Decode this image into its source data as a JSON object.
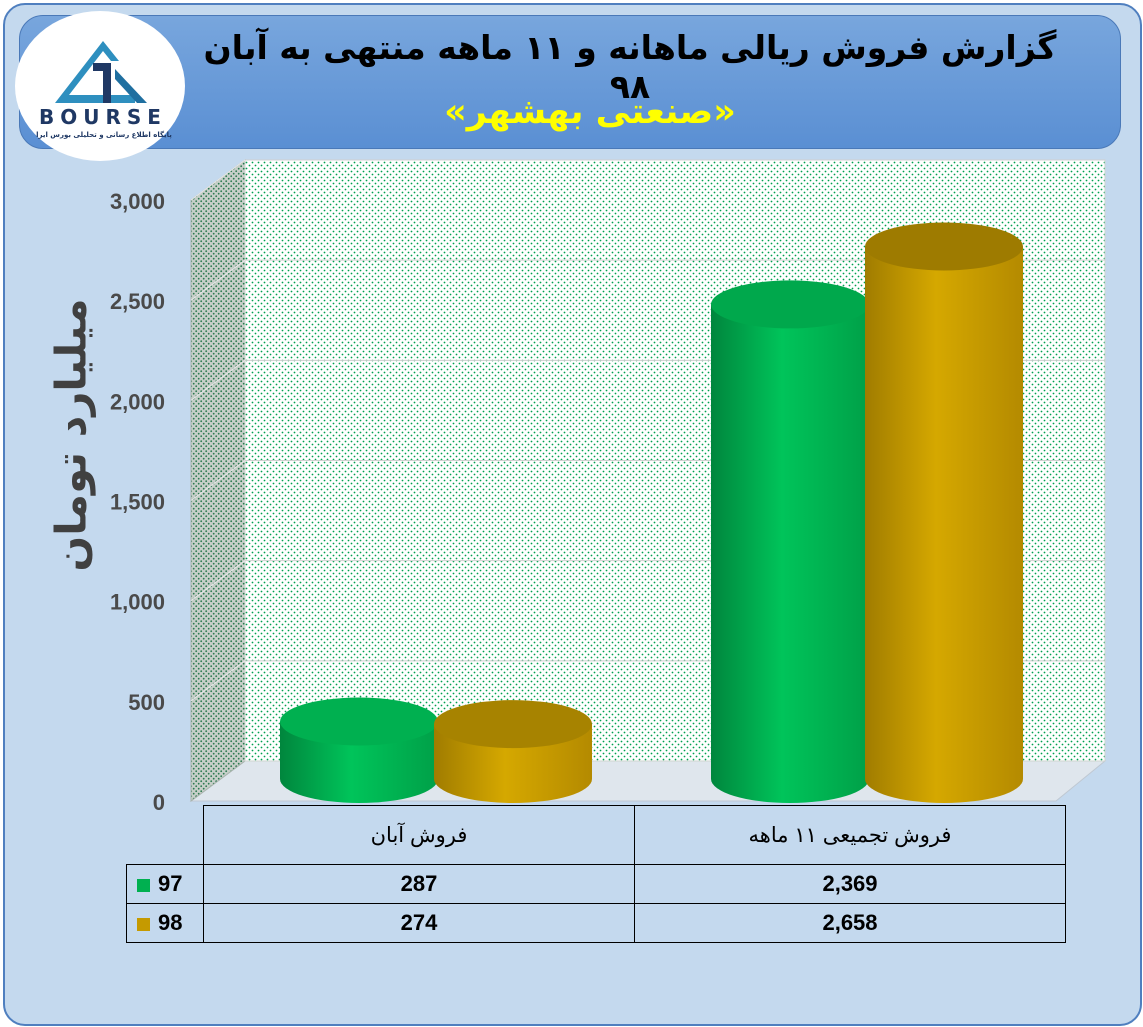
{
  "title": "گزارش فروش ریالی ماهانه و ۱۱ ماهه منتهی به آبان ۹۸",
  "subtitle": "«صنعتی بهشهر»",
  "logo": {
    "text": "BOURSE",
    "tagline": "پایگاه اطلاع رسانی و تحلیلی بورس ایرا"
  },
  "colors": {
    "series_97": "#00b050",
    "series_98": "#c59a00",
    "background": "#c4d9ee",
    "header": "#6799d8",
    "title_text": "#000000",
    "subtitle_text": "#ffff00"
  },
  "chart_data": {
    "type": "bar",
    "style": "3d-cylinder",
    "title": "گزارش فروش ریالی ماهانه و ۱۱ ماهه منتهی به آبان ۹۸",
    "subtitle": "«صنعتی بهشهر»",
    "ylabel": "میلیارد تومان",
    "xlabel": "",
    "ylim": [
      0,
      3000
    ],
    "yticks": [
      0,
      500,
      1000,
      1500,
      2000,
      2500,
      3000
    ],
    "ytick_labels": [
      "0",
      "500",
      "1,000",
      "1,500",
      "2,000",
      "2,500",
      "3,000"
    ],
    "categories": [
      "فروش آبان",
      "فروش تجمیعی ۱۱ ماهه"
    ],
    "series": [
      {
        "name": "97",
        "values": [
          287,
          2369
        ],
        "value_labels": [
          "287",
          "2,369"
        ],
        "color": "#00b050"
      },
      {
        "name": "98",
        "values": [
          274,
          2658
        ],
        "value_labels": [
          "274",
          "2,658"
        ],
        "color": "#c59a00"
      }
    ],
    "grid": true,
    "legend": "data-table"
  }
}
